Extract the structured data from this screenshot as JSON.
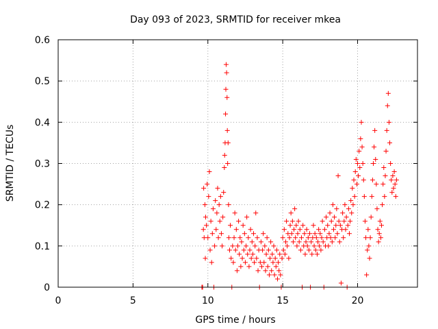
{
  "chart_data": {
    "type": "scatter",
    "title": "Day 093 of 2023, SRMTID for receiver mkea",
    "xlabel": "GPS time / hours",
    "ylabel": "SRMTID / TECUs",
    "xlim": [
      0,
      24
    ],
    "ylim": [
      0,
      0.6
    ],
    "xticks": [
      0,
      5,
      10,
      15,
      20
    ],
    "xtick_labels": [
      "0",
      "5",
      "10",
      "15",
      "20"
    ],
    "yticks": [
      0,
      0.1,
      0.2,
      0.3,
      0.4,
      0.5,
      0.6
    ],
    "ytick_labels": [
      "0",
      "0.1",
      "0.2",
      "0.3",
      "0.4",
      "0.5",
      "0.6"
    ],
    "grid": true,
    "marker": "+",
    "color": "#ff0000",
    "series": [
      {
        "name": "SRMTID",
        "points": [
          [
            9.6,
            0.0
          ],
          [
            9.65,
            0.0
          ],
          [
            9.7,
            0.14
          ],
          [
            9.72,
            0.24
          ],
          [
            9.75,
            0.12
          ],
          [
            9.8,
            0.2
          ],
          [
            9.83,
            0.07
          ],
          [
            9.85,
            0.17
          ],
          [
            9.9,
            0.15
          ],
          [
            9.95,
            0.25
          ],
          [
            10.0,
            0.12
          ],
          [
            10.05,
            0.22
          ],
          [
            10.1,
            0.28
          ],
          [
            10.15,
            0.09
          ],
          [
            10.2,
            0.16
          ],
          [
            10.25,
            0.06
          ],
          [
            10.3,
            0.13
          ],
          [
            10.35,
            0.19
          ],
          [
            10.4,
            0.0
          ],
          [
            10.45,
            0.1
          ],
          [
            10.5,
            0.21
          ],
          [
            10.55,
            0.14
          ],
          [
            10.6,
            0.18
          ],
          [
            10.65,
            0.24
          ],
          [
            10.7,
            0.12
          ],
          [
            10.75,
            0.2
          ],
          [
            10.8,
            0.16
          ],
          [
            10.85,
            0.22
          ],
          [
            10.9,
            0.13
          ],
          [
            10.95,
            0.1
          ],
          [
            11.0,
            0.17
          ],
          [
            11.05,
            0.23
          ],
          [
            11.1,
            0.29
          ],
          [
            11.12,
            0.32
          ],
          [
            11.15,
            0.35
          ],
          [
            11.18,
            0.42
          ],
          [
            11.2,
            0.48
          ],
          [
            11.22,
            0.54
          ],
          [
            11.25,
            0.52
          ],
          [
            11.28,
            0.46
          ],
          [
            11.3,
            0.38
          ],
          [
            11.32,
            0.3
          ],
          [
            11.35,
            0.35
          ],
          [
            11.38,
            0.2
          ],
          [
            11.4,
            0.12
          ],
          [
            11.45,
            0.09
          ],
          [
            11.5,
            0.15
          ],
          [
            11.55,
            0.07
          ],
          [
            11.6,
            0.0
          ],
          [
            11.65,
            0.1
          ],
          [
            11.7,
            0.06
          ],
          [
            11.75,
            0.12
          ],
          [
            11.8,
            0.18
          ],
          [
            11.85,
            0.09
          ],
          [
            11.9,
            0.14
          ],
          [
            11.95,
            0.04
          ],
          [
            12.0,
            0.1
          ],
          [
            12.05,
            0.16
          ],
          [
            12.1,
            0.08
          ],
          [
            12.15,
            0.12
          ],
          [
            12.2,
            0.05
          ],
          [
            12.25,
            0.11
          ],
          [
            12.3,
            0.07
          ],
          [
            12.35,
            0.15
          ],
          [
            12.4,
            0.09
          ],
          [
            12.45,
            0.13
          ],
          [
            12.5,
            0.06
          ],
          [
            12.55,
            0.1
          ],
          [
            12.6,
            0.17
          ],
          [
            12.65,
            0.08
          ],
          [
            12.7,
            0.12
          ],
          [
            12.75,
            0.05
          ],
          [
            12.8,
            0.09
          ],
          [
            12.85,
            0.14
          ],
          [
            12.9,
            0.07
          ],
          [
            12.95,
            0.11
          ],
          [
            13.0,
            0.08
          ],
          [
            13.05,
            0.13
          ],
          [
            13.1,
            0.06
          ],
          [
            13.15,
            0.1
          ],
          [
            13.2,
            0.18
          ],
          [
            13.25,
            0.07
          ],
          [
            13.3,
            0.12
          ],
          [
            13.35,
            0.04
          ],
          [
            13.4,
            0.09
          ],
          [
            13.45,
            0.0
          ],
          [
            13.5,
            0.06
          ],
          [
            13.55,
            0.11
          ],
          [
            13.6,
            0.05
          ],
          [
            13.65,
            0.09
          ],
          [
            13.7,
            0.13
          ],
          [
            13.75,
            0.06
          ],
          [
            13.8,
            0.1
          ],
          [
            13.85,
            0.04
          ],
          [
            13.9,
            0.08
          ],
          [
            13.95,
            0.12
          ],
          [
            14.0,
            0.05
          ],
          [
            14.05,
            0.09
          ],
          [
            14.1,
            0.03
          ],
          [
            14.15,
            0.07
          ],
          [
            14.2,
            0.11
          ],
          [
            14.25,
            0.04
          ],
          [
            14.3,
            0.08
          ],
          [
            14.35,
            0.06
          ],
          [
            14.4,
            0.1
          ],
          [
            14.45,
            0.03
          ],
          [
            14.5,
            0.07
          ],
          [
            14.55,
            0.05
          ],
          [
            14.6,
            0.09
          ],
          [
            14.65,
            0.02
          ],
          [
            14.7,
            0.06
          ],
          [
            14.75,
            0.04
          ],
          [
            14.8,
            0.08
          ],
          [
            14.85,
            0.03
          ],
          [
            14.9,
            0.0
          ],
          [
            14.95,
            0.07
          ],
          [
            15.0,
            0.12
          ],
          [
            15.05,
            0.09
          ],
          [
            15.1,
            0.14
          ],
          [
            15.15,
            0.08
          ],
          [
            15.2,
            0.11
          ],
          [
            15.25,
            0.16
          ],
          [
            15.3,
            0.1
          ],
          [
            15.35,
            0.13
          ],
          [
            15.4,
            0.07
          ],
          [
            15.45,
            0.12
          ],
          [
            15.5,
            0.15
          ],
          [
            15.55,
            0.18
          ],
          [
            15.6,
            0.13
          ],
          [
            15.65,
            0.16
          ],
          [
            15.7,
            0.11
          ],
          [
            15.75,
            0.14
          ],
          [
            15.8,
            0.19
          ],
          [
            15.85,
            0.12
          ],
          [
            15.9,
            0.15
          ],
          [
            15.95,
            0.1
          ],
          [
            16.0,
            0.13
          ],
          [
            16.05,
            0.16
          ],
          [
            16.1,
            0.11
          ],
          [
            16.15,
            0.14
          ],
          [
            16.2,
            0.09
          ],
          [
            16.25,
            0.12
          ],
          [
            16.3,
            0.0
          ],
          [
            16.35,
            0.15
          ],
          [
            16.4,
            0.1
          ],
          [
            16.45,
            0.13
          ],
          [
            16.5,
            0.08
          ],
          [
            16.55,
            0.11
          ],
          [
            16.6,
            0.14
          ],
          [
            16.65,
            0.1
          ],
          [
            16.7,
            0.12
          ],
          [
            16.75,
            0.09
          ],
          [
            16.8,
            0.13
          ],
          [
            16.85,
            0.0
          ],
          [
            16.9,
            0.11
          ],
          [
            16.95,
            0.08
          ],
          [
            17.0,
            0.12
          ],
          [
            17.05,
            0.15
          ],
          [
            17.1,
            0.1
          ],
          [
            17.15,
            0.13
          ],
          [
            17.2,
            0.09
          ],
          [
            17.25,
            0.12
          ],
          [
            17.3,
            0.08
          ],
          [
            17.35,
            0.11
          ],
          [
            17.4,
            0.14
          ],
          [
            17.45,
            0.1
          ],
          [
            17.5,
            0.13
          ],
          [
            17.55,
            0.09
          ],
          [
            17.6,
            0.12
          ],
          [
            17.65,
            0.16
          ],
          [
            17.7,
            0.11
          ],
          [
            17.75,
            0.0
          ],
          [
            17.8,
            0.14
          ],
          [
            17.85,
            0.1
          ],
          [
            17.9,
            0.17
          ],
          [
            17.95,
            0.12
          ],
          [
            18.0,
            0.15
          ],
          [
            18.05,
            0.1
          ],
          [
            18.1,
            0.13
          ],
          [
            18.15,
            0.18
          ],
          [
            18.2,
            0.12
          ],
          [
            18.25,
            0.16
          ],
          [
            18.3,
            0.11
          ],
          [
            18.35,
            0.2
          ],
          [
            18.4,
            0.14
          ],
          [
            18.45,
            0.17
          ],
          [
            18.5,
            0.12
          ],
          [
            18.55,
            0.15
          ],
          [
            18.6,
            0.19
          ],
          [
            18.65,
            0.13
          ],
          [
            18.7,
            0.27
          ],
          [
            18.75,
            0.16
          ],
          [
            18.8,
            0.11
          ],
          [
            18.85,
            0.15
          ],
          [
            18.9,
            0.01
          ],
          [
            18.95,
            0.14
          ],
          [
            19.0,
            0.18
          ],
          [
            19.05,
            0.12
          ],
          [
            19.1,
            0.16
          ],
          [
            19.15,
            0.2
          ],
          [
            19.2,
            0.14
          ],
          [
            19.25,
            0.17
          ],
          [
            19.3,
            0.0
          ],
          [
            19.35,
            0.15
          ],
          [
            19.4,
            0.19
          ],
          [
            19.45,
            0.13
          ],
          [
            19.5,
            0.16
          ],
          [
            19.55,
            0.21
          ],
          [
            19.6,
            0.18
          ],
          [
            19.65,
            0.24
          ],
          [
            19.7,
            0.2
          ],
          [
            19.75,
            0.26
          ],
          [
            19.8,
            0.22
          ],
          [
            19.85,
            0.28
          ],
          [
            19.9,
            0.31
          ],
          [
            19.95,
            0.25
          ],
          [
            20.0,
            0.3
          ],
          [
            20.05,
            0.27
          ],
          [
            20.1,
            0.33
          ],
          [
            20.15,
            0.29
          ],
          [
            20.2,
            0.36
          ],
          [
            20.25,
            0.4
          ],
          [
            20.3,
            0.34
          ],
          [
            20.35,
            0.3
          ],
          [
            20.4,
            0.26
          ],
          [
            20.45,
            0.22
          ],
          [
            20.5,
            0.16
          ],
          [
            20.55,
            0.12
          ],
          [
            20.6,
            0.03
          ],
          [
            20.65,
            0.09
          ],
          [
            20.7,
            0.14
          ],
          [
            20.75,
            0.1
          ],
          [
            20.8,
            0.07
          ],
          [
            20.85,
            0.12
          ],
          [
            20.9,
            0.17
          ],
          [
            20.95,
            0.22
          ],
          [
            21.0,
            0.26
          ],
          [
            21.05,
            0.3
          ],
          [
            21.1,
            0.34
          ],
          [
            21.15,
            0.38
          ],
          [
            21.2,
            0.31
          ],
          [
            21.25,
            0.25
          ],
          [
            21.3,
            0.19
          ],
          [
            21.35,
            0.14
          ],
          [
            21.4,
            0.11
          ],
          [
            21.45,
            0.13
          ],
          [
            21.5,
            0.16
          ],
          [
            21.55,
            0.12
          ],
          [
            21.6,
            0.15
          ],
          [
            21.65,
            0.2
          ],
          [
            21.7,
            0.25
          ],
          [
            21.75,
            0.29
          ],
          [
            21.8,
            0.22
          ],
          [
            21.85,
            0.27
          ],
          [
            21.9,
            0.33
          ],
          [
            21.95,
            0.38
          ],
          [
            22.0,
            0.44
          ],
          [
            22.05,
            0.47
          ],
          [
            22.1,
            0.4
          ],
          [
            22.15,
            0.35
          ],
          [
            22.2,
            0.3
          ],
          [
            22.25,
            0.26
          ],
          [
            22.3,
            0.23
          ],
          [
            22.35,
            0.27
          ],
          [
            22.4,
            0.24
          ],
          [
            22.45,
            0.28
          ],
          [
            22.5,
            0.25
          ],
          [
            22.55,
            0.22
          ],
          [
            22.6,
            0.26
          ]
        ]
      }
    ]
  }
}
